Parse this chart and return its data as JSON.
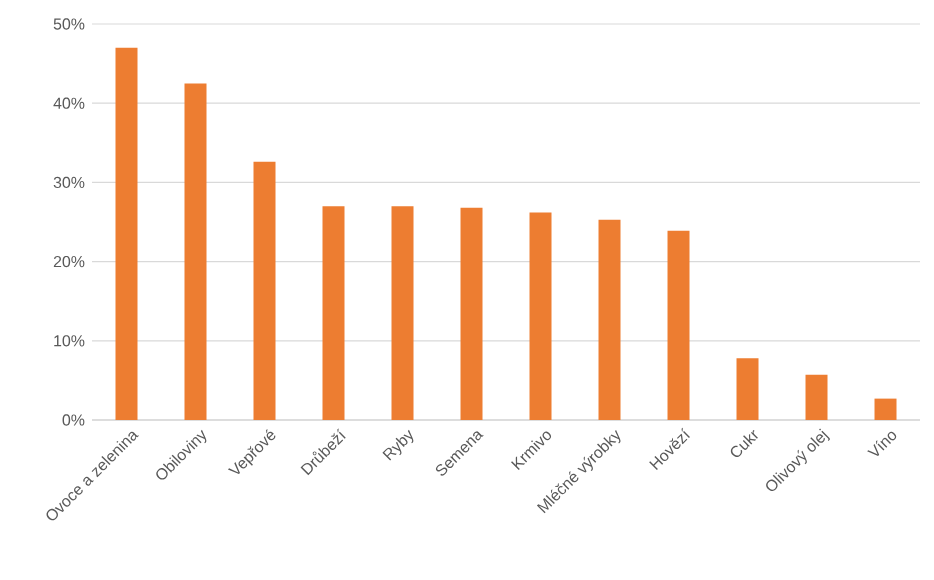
{
  "chart_data": {
    "type": "bar",
    "categories": [
      "Ovoce a zelenina",
      "Obiloviny",
      "Vepřové",
      "Drůbeží",
      "Ryby",
      "Semena",
      "Krmivo",
      "Mléčné výrobky",
      "Hovězí",
      "Cukr",
      "Olivový olej",
      "Víno"
    ],
    "values": [
      47.0,
      42.5,
      32.6,
      27.0,
      27.0,
      26.8,
      26.2,
      25.3,
      23.9,
      7.8,
      5.7,
      2.7
    ],
    "color": "#ed7d31",
    "ylim": [
      0,
      50
    ],
    "yticks": [
      {
        "value": 0,
        "label": "0%"
      },
      {
        "value": 10,
        "label": "10%"
      },
      {
        "value": 20,
        "label": "20%"
      },
      {
        "value": 30,
        "label": "30%"
      },
      {
        "value": 40,
        "label": "40%"
      },
      {
        "value": 50,
        "label": "50%"
      }
    ],
    "grid": "y"
  }
}
